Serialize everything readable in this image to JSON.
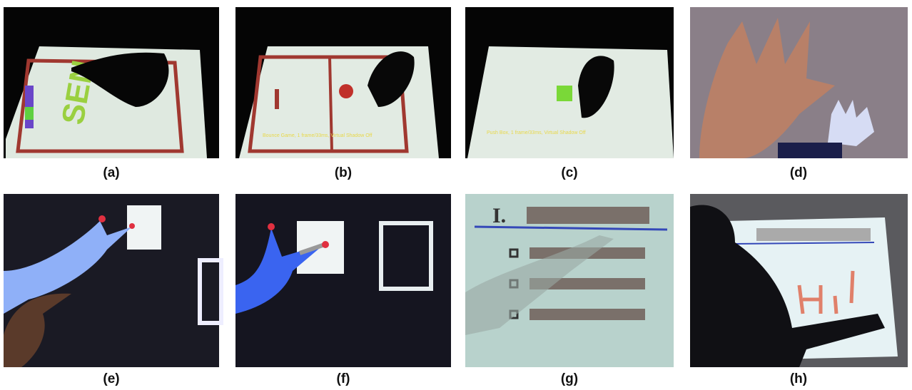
{
  "panels": [
    {
      "caption": "(a)"
    },
    {
      "caption": "(b)",
      "overlay": "Bounce Game, 1 frame/33ms, Virtual Shadow Off"
    },
    {
      "caption": "(c)",
      "overlay": "Push Box, 1 frame/33ms, Virtual Shadow Off"
    },
    {
      "caption": "(d)"
    },
    {
      "caption": "(e)"
    },
    {
      "caption": "(f)"
    },
    {
      "caption": "(g)"
    },
    {
      "caption": "(h)"
    }
  ]
}
